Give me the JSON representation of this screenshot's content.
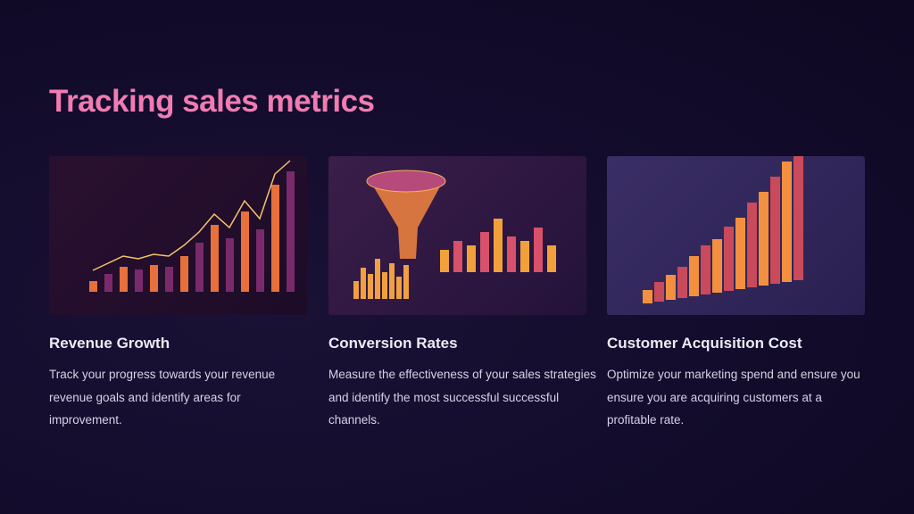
{
  "slide": {
    "title": "Tracking sales metrics",
    "accent_color": "#f07cb2",
    "cards": [
      {
        "heading": "Revenue Growth",
        "body": "Track your progress towards your revenue revenue goals and identify areas for improvement.",
        "image": "revenue-growth-bar-chart-illustration"
      },
      {
        "heading": "Conversion Rates",
        "body": "Measure the effectiveness of your sales strategies and identify the most successful successful channels.",
        "image": "conversion-funnel-illustration"
      },
      {
        "heading": "Customer Acquisition Cost",
        "body": "Optimize your marketing spend and ensure you ensure you are acquiring customers at a profitable rate.",
        "image": "3d-bar-chart-illustration"
      }
    ]
  }
}
